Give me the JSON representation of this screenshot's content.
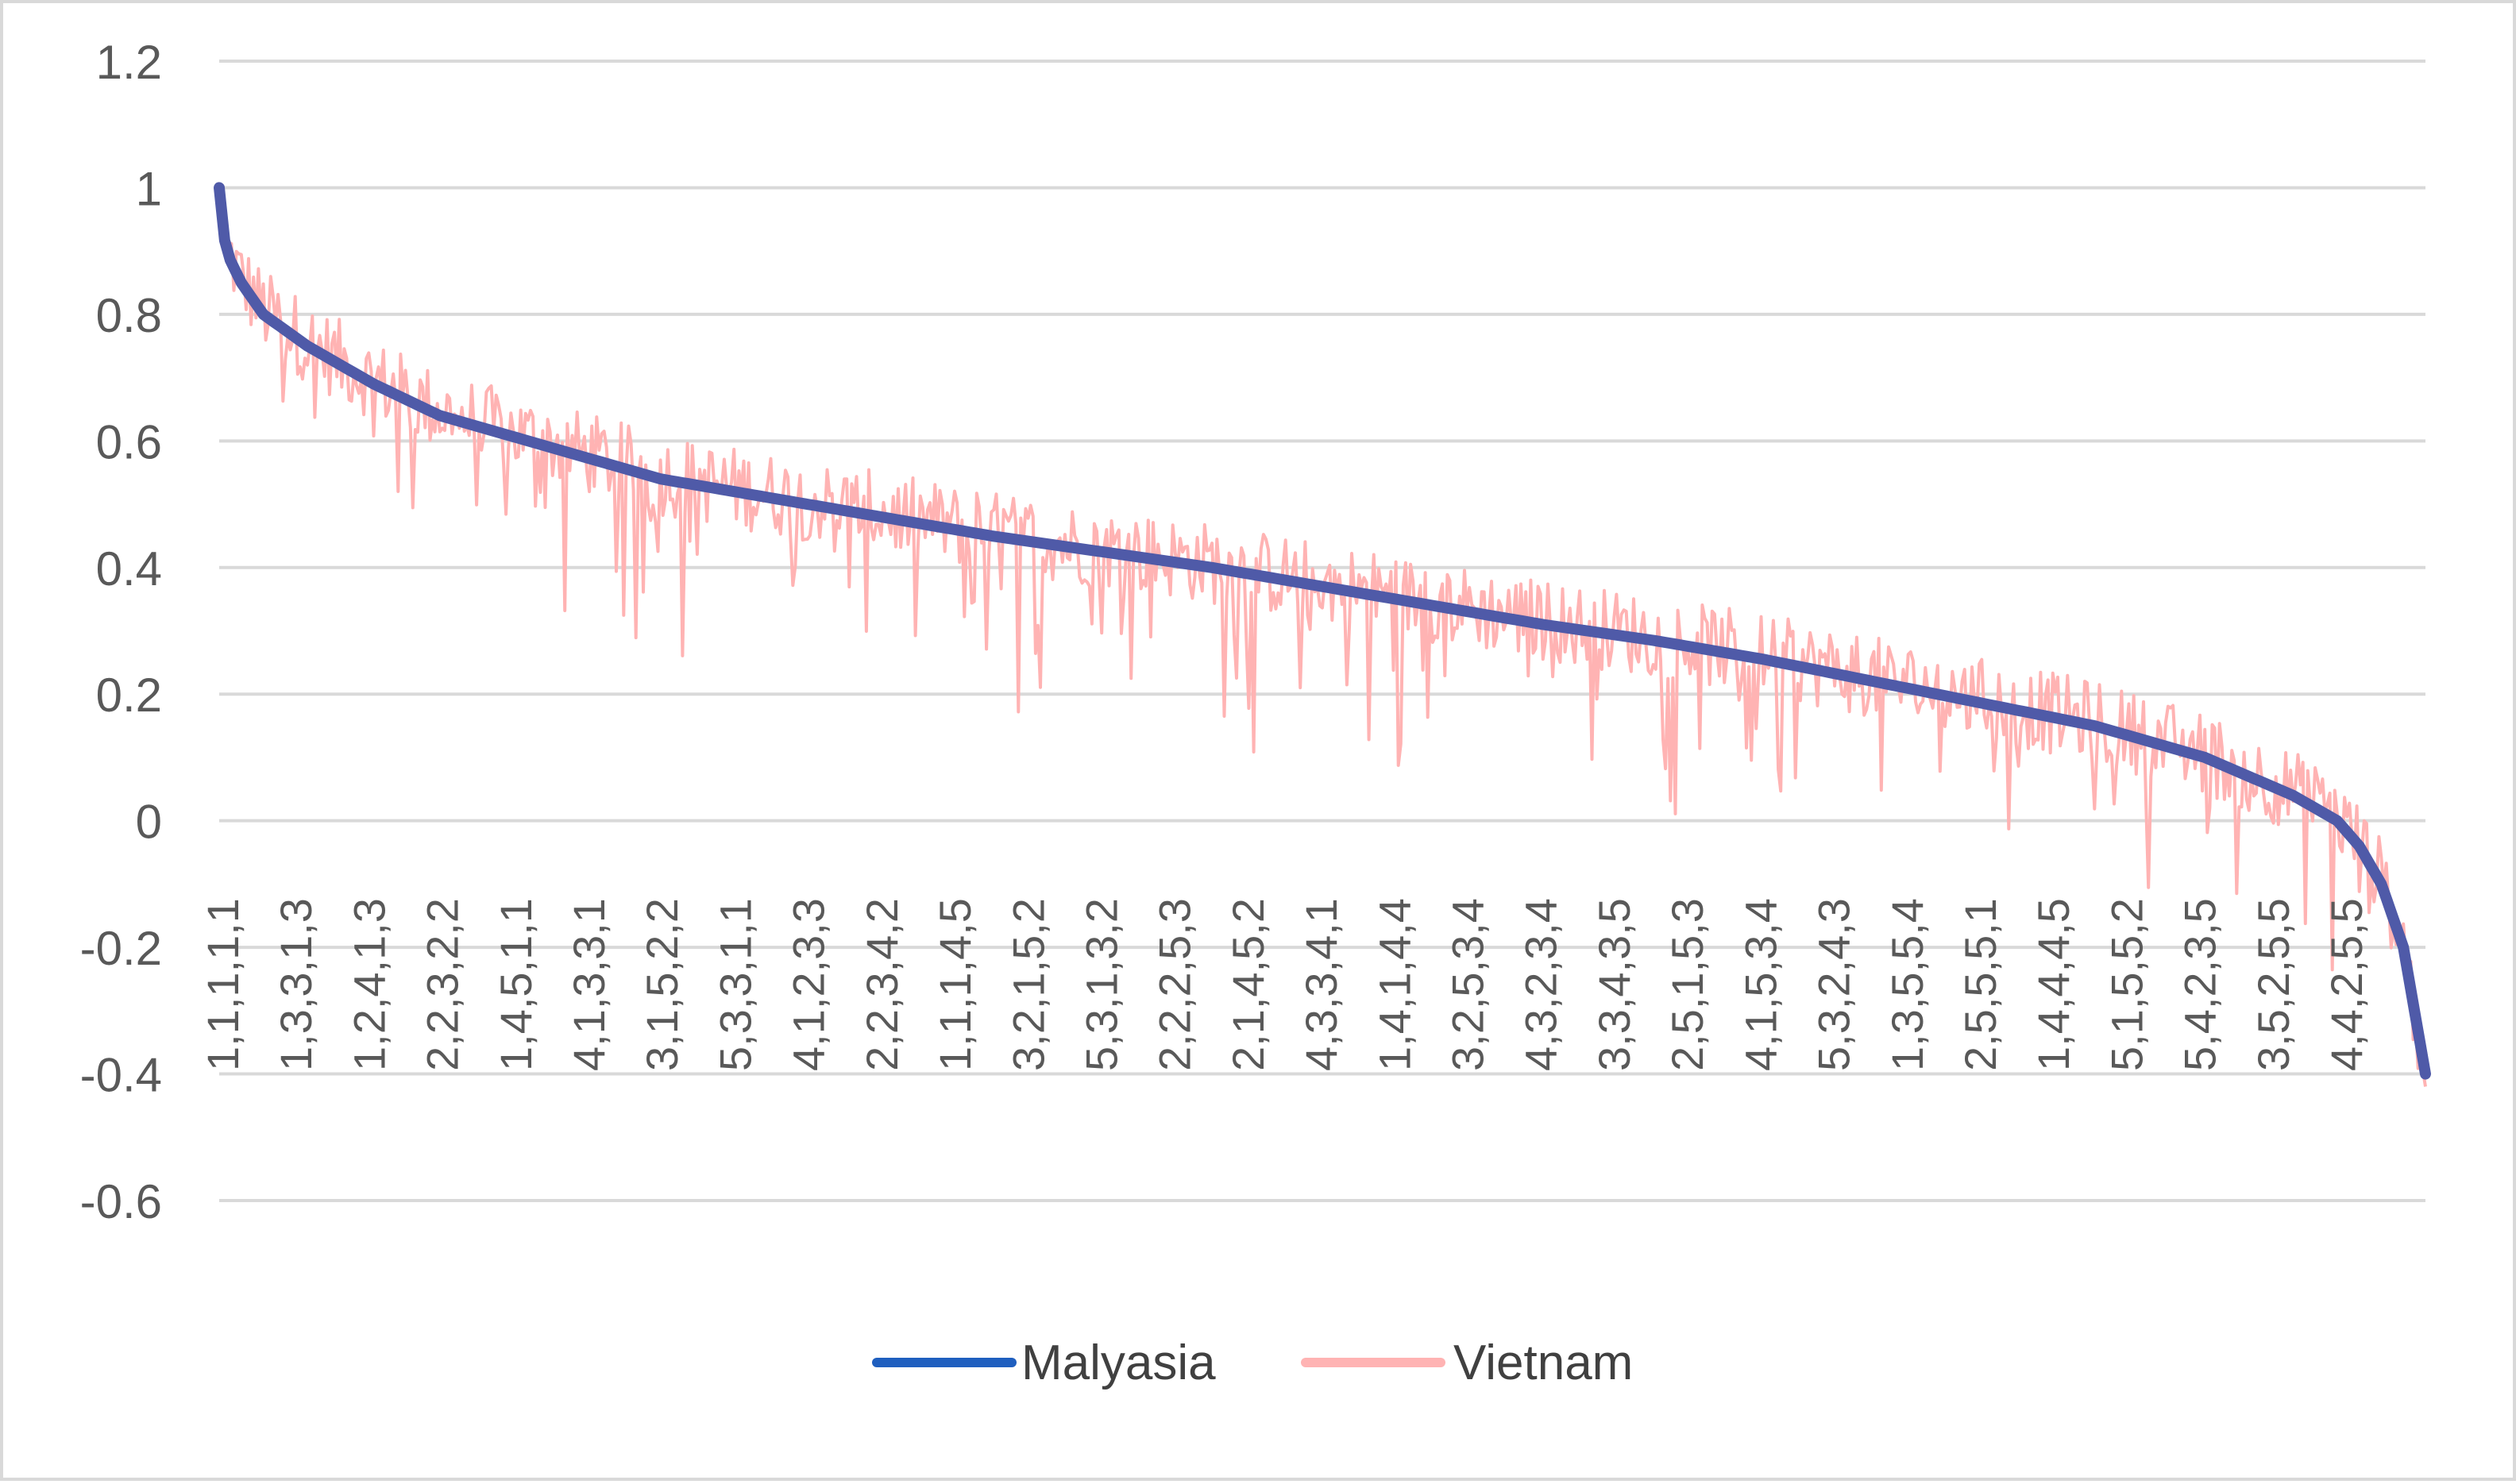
{
  "chart_data": {
    "type": "line",
    "title": "",
    "xlabel": "",
    "ylabel": "",
    "ylim": [
      -0.6,
      1.2
    ],
    "y_ticks": [
      1.2,
      1,
      0.8,
      0.6,
      0.4,
      0.2,
      0,
      -0.2,
      -0.4,
      -0.6
    ],
    "y_tick_labels": [
      "1.2",
      "1",
      "0.8",
      "0.6",
      "0.4",
      "0.2",
      "0",
      "-0.2",
      "-0.4",
      "-0.6"
    ],
    "grid": true,
    "legend_position": "bottom-center",
    "x_tick_labels": [
      "1,1,1,1,1",
      "1,3,3,1,3",
      "1,2,4,1,3",
      "2,2,3,2,2",
      "1,4,5,1,1",
      "4,1,3,3,1",
      "3,1,5,2,2",
      "5,3,3,1,1",
      "4,1,2,3,3",
      "2,2,3,4,2",
      "1,1,1,4,5",
      "3,2,1,5,2",
      "5,3,1,3,2",
      "2,2,2,5,3",
      "2,1,4,5,2",
      "4,3,3,4,1",
      "1,4,1,4,4",
      "3,2,5,3,4",
      "4,3,2,3,4",
      "3,3,4,3,5",
      "2,5,1,5,3",
      "4,1,5,3,4",
      "5,3,2,4,3",
      "1,3,5,5,4",
      "2,5,5,5,1",
      "1,4,4,4,5",
      "5,1,5,5,2",
      "5,4,2,3,5",
      "3,5,2,5,5",
      "4,4,2,5,5"
    ],
    "series": [
      {
        "name": "Malyasia",
        "color": "#4f5aa8",
        "x": [
          0,
          0.003,
          0.01,
          0.02,
          0.04,
          0.07,
          0.1,
          0.15,
          0.2,
          0.25,
          0.3,
          0.35,
          0.4,
          0.45,
          0.5,
          0.55,
          0.6,
          0.65,
          0.7,
          0.75,
          0.8,
          0.85,
          0.88,
          0.9,
          0.92,
          0.94,
          0.96,
          0.97,
          0.98,
          0.99,
          1.0
        ],
        "values": [
          1.0,
          0.9,
          0.85,
          0.8,
          0.75,
          0.69,
          0.64,
          0.59,
          0.54,
          0.51,
          0.48,
          0.45,
          0.425,
          0.4,
          0.37,
          0.34,
          0.31,
          0.285,
          0.255,
          0.22,
          0.185,
          0.15,
          0.12,
          0.1,
          0.07,
          0.04,
          0.0,
          -0.04,
          -0.1,
          -0.2,
          -0.4
        ]
      },
      {
        "name": "Vietnam",
        "color": "#ffb3b3",
        "x": [
          0,
          0.003,
          0.01,
          0.02,
          0.04,
          0.07,
          0.1,
          0.15,
          0.2,
          0.25,
          0.3,
          0.35,
          0.4,
          0.45,
          0.5,
          0.55,
          0.6,
          0.65,
          0.7,
          0.75,
          0.8,
          0.85,
          0.88,
          0.9,
          0.92,
          0.94,
          0.96,
          0.97,
          0.98,
          0.99,
          1.0
        ],
        "values": [
          0.95,
          0.9,
          0.85,
          0.8,
          0.75,
          0.69,
          0.64,
          0.59,
          0.54,
          0.51,
          0.48,
          0.45,
          0.425,
          0.4,
          0.37,
          0.34,
          0.31,
          0.285,
          0.255,
          0.22,
          0.185,
          0.15,
          0.12,
          0.1,
          0.07,
          0.04,
          0.0,
          -0.04,
          -0.1,
          -0.2,
          -0.42
        ],
        "noise_band": 0.13
      }
    ]
  }
}
